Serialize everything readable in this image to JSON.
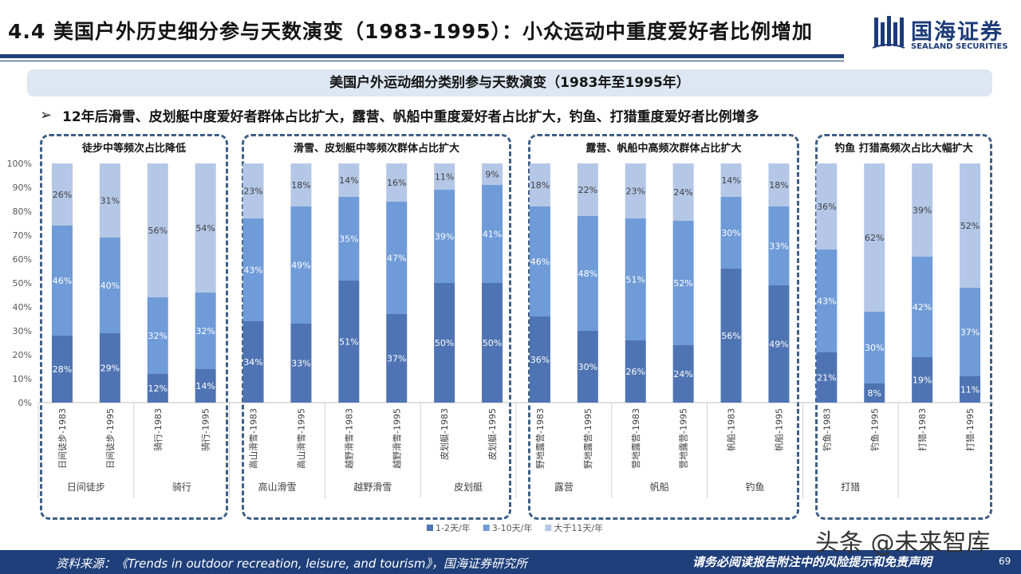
{
  "header": {
    "title": "4.4 美国户外历史细分参与天数演变（1983-1995）：小众运动中重度爱好者比例增加",
    "logo_cn": "国海证券",
    "logo_en": "SEALAND SECURITIES"
  },
  "subtitle": "美国户外运动细分类别参与天数演变（1983年至1995年）",
  "bullet": "12年后滑雪、皮划艇中度爱好者群体占比扩大，露营、帆船中重度爱好者占比扩大，钓鱼、打猎重度爱好者比例增多",
  "groups": [
    {
      "title": "徒步中等频次占比降低"
    },
    {
      "title": "滑雪、皮划艇中等频次群体占比扩大"
    },
    {
      "title": "露营、帆船中高频次群体占比扩大"
    },
    {
      "title": "钓鱼 打猎高频次占比大幅扩大"
    }
  ],
  "chart_data": {
    "type": "bar",
    "stacked": "percent",
    "ylim": [
      0,
      100
    ],
    "yticks": [
      "0%",
      "10%",
      "20%",
      "30%",
      "40%",
      "50%",
      "60%",
      "70%",
      "80%",
      "90%",
      "100%"
    ],
    "categories": [
      "日间徒步-1983",
      "日间徒步-1995",
      "骑行-1983",
      "骑行-1995",
      "高山滑雪-1983",
      "高山滑雪-1995",
      "越野滑雪-1983",
      "越野滑雪-1995",
      "皮划艇-1983",
      "皮划艇-1995",
      "野地露营-1983",
      "野地露营-1995",
      "营地露营-1983",
      "营地露营-1995",
      "帆船-1983",
      "帆船-1995",
      "钓鱼-1983",
      "钓鱼-1995",
      "打猎-1983",
      "打猎-1995"
    ],
    "activities": [
      "日间徒步",
      "骑行",
      "高山滑雪",
      "越野滑雪",
      "皮划艇",
      "露营",
      "帆船",
      "钓鱼",
      "打猎"
    ],
    "series": [
      {
        "name": "1-2天/年",
        "color": "#4f74b3",
        "values": [
          28,
          29,
          12,
          14,
          34,
          33,
          51,
          37,
          50,
          50,
          36,
          30,
          26,
          24,
          56,
          49,
          21,
          8,
          19,
          11
        ]
      },
      {
        "name": "3-10天/年",
        "color": "#6f9bd8",
        "values": [
          46,
          40,
          32,
          32,
          43,
          49,
          35,
          47,
          39,
          41,
          46,
          48,
          51,
          52,
          30,
          33,
          43,
          30,
          42,
          37
        ]
      },
      {
        "name": "大于11天/年",
        "color": "#b4c7e7",
        "values": [
          26,
          31,
          56,
          54,
          23,
          18,
          14,
          16,
          11,
          9,
          18,
          22,
          23,
          24,
          14,
          18,
          36,
          62,
          39,
          52
        ]
      }
    ]
  },
  "footer": {
    "source": "资料来源：《Trends in outdoor recreation, leisure, and tourism》，国海证券研究所",
    "disclaimer": "请务必阅读报告附注中的风险提示和免责声明",
    "page": "69"
  },
  "watermark": "头条 @未来智库"
}
